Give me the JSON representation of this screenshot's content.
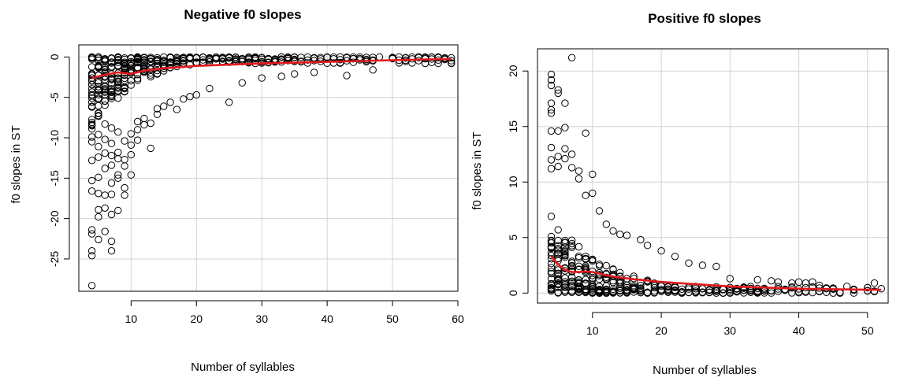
{
  "chart_data": [
    {
      "type": "scatter",
      "title": "Negative f0 slopes",
      "xlabel": "Number of syllables",
      "ylabel": "f0 slopes in ST",
      "xlim": [
        2,
        60
      ],
      "ylim": [
        -29,
        1.5
      ],
      "xticks": [
        10,
        20,
        30,
        40,
        50,
        60
      ],
      "yticks": [
        0,
        -5,
        -10,
        -15,
        -20,
        -25
      ],
      "grid": true,
      "point_color": "#000000",
      "fit_color": "#e41a1c",
      "x_min_data": 4,
      "x_max_data": 59,
      "sample_points": [
        [
          4,
          -28.3
        ],
        [
          4,
          -24.6
        ],
        [
          4,
          -24.0
        ],
        [
          4,
          -21.9
        ],
        [
          4,
          -21.4
        ],
        [
          4,
          -16.6
        ],
        [
          4,
          -15.3
        ],
        [
          4,
          -12.8
        ],
        [
          4,
          -10.5
        ],
        [
          4,
          -9.9
        ],
        [
          4,
          -8.1
        ],
        [
          4,
          -6.2
        ],
        [
          4,
          -4.8
        ],
        [
          5,
          -22.6
        ],
        [
          5,
          -19.8
        ],
        [
          5,
          -18.9
        ],
        [
          5,
          -16.9
        ],
        [
          5,
          -14.9
        ],
        [
          5,
          -12.4
        ],
        [
          5,
          -11.1
        ],
        [
          5,
          -9.6
        ],
        [
          5,
          -7.0
        ],
        [
          6,
          -21.6
        ],
        [
          6,
          -18.7
        ],
        [
          6,
          -17.1
        ],
        [
          6,
          -13.8
        ],
        [
          6,
          -11.9
        ],
        [
          6,
          -10.2
        ],
        [
          6,
          -8.3
        ],
        [
          7,
          -24.0
        ],
        [
          7,
          -22.8
        ],
        [
          7,
          -19.5
        ],
        [
          7,
          -17.0
        ],
        [
          7,
          -15.6
        ],
        [
          7,
          -13.4
        ],
        [
          7,
          -12.2
        ],
        [
          7,
          -10.7
        ],
        [
          7,
          -8.8
        ],
        [
          8,
          -19.0
        ],
        [
          8,
          -15.0
        ],
        [
          8,
          -14.6
        ],
        [
          8,
          -12.6
        ],
        [
          8,
          -11.8
        ],
        [
          8,
          -9.3
        ],
        [
          9,
          -17.1
        ],
        [
          9,
          -16.2
        ],
        [
          9,
          -13.5
        ],
        [
          9,
          -12.7
        ],
        [
          9,
          -10.4
        ],
        [
          10,
          -14.6
        ],
        [
          10,
          -12.1
        ],
        [
          10,
          -10.9
        ],
        [
          10,
          -9.5
        ],
        [
          11,
          -10.3
        ],
        [
          11,
          -9.0
        ],
        [
          11,
          -8.0
        ],
        [
          12,
          -8.4
        ],
        [
          12,
          -7.6
        ],
        [
          13,
          -11.3
        ],
        [
          13,
          -8.2
        ],
        [
          14,
          -6.4
        ],
        [
          14,
          -7.1
        ],
        [
          15,
          -6.1
        ],
        [
          16,
          -5.6
        ],
        [
          17,
          -6.5
        ],
        [
          18,
          -5.2
        ],
        [
          19,
          -4.9
        ],
        [
          20,
          -4.7
        ],
        [
          22,
          -3.9
        ],
        [
          25,
          -5.6
        ],
        [
          27,
          -3.2
        ],
        [
          30,
          -2.6
        ],
        [
          33,
          -2.4
        ],
        [
          35,
          -2.1
        ],
        [
          38,
          -1.9
        ],
        [
          43,
          -2.3
        ],
        [
          47,
          -1.6
        ],
        [
          57,
          -0.8
        ],
        [
          59,
          -0.8
        ],
        [
          42,
          0
        ],
        [
          44,
          -0.2
        ],
        [
          46,
          -0.3
        ],
        [
          48,
          0
        ],
        [
          50,
          -0.2
        ],
        [
          52,
          -0.4
        ],
        [
          54,
          0
        ],
        [
          55,
          0
        ],
        [
          56,
          0
        ],
        [
          57,
          0
        ]
      ],
      "fit_line": [
        [
          4,
          -2.6
        ],
        [
          6,
          -2.2
        ],
        [
          8,
          -1.9
        ],
        [
          10,
          -2.1
        ],
        [
          12,
          -1.7
        ],
        [
          15,
          -1.4
        ],
        [
          20,
          -1.1
        ],
        [
          25,
          -0.95
        ],
        [
          30,
          -0.8
        ],
        [
          35,
          -0.7
        ],
        [
          40,
          -0.6
        ],
        [
          45,
          -0.5
        ],
        [
          50,
          -0.4
        ],
        [
          55,
          -0.3
        ],
        [
          59,
          -0.25
        ]
      ]
    },
    {
      "type": "scatter",
      "title": "Positive f0 slopes",
      "xlabel": "Number of syllables",
      "ylabel": "f0 slopes in ST",
      "xlim": [
        2,
        53
      ],
      "ylim": [
        -0.9,
        22
      ],
      "xticks": [
        10,
        20,
        30,
        40,
        50
      ],
      "yticks": [
        0,
        5,
        10,
        15,
        20
      ],
      "grid": true,
      "point_color": "#000000",
      "fit_color": "#e41a1c",
      "x_min_data": 4,
      "x_max_data": 52,
      "sample_points": [
        [
          4,
          19.7
        ],
        [
          4,
          19.2
        ],
        [
          4,
          18.7
        ],
        [
          4,
          17.1
        ],
        [
          4,
          16.5
        ],
        [
          4,
          16.2
        ],
        [
          4,
          14.6
        ],
        [
          4,
          13.1
        ],
        [
          4,
          12.0
        ],
        [
          4,
          11.2
        ],
        [
          5,
          18.3
        ],
        [
          5,
          18.0
        ],
        [
          5,
          14.6
        ],
        [
          5,
          12.3
        ],
        [
          5,
          11.4
        ],
        [
          6,
          17.1
        ],
        [
          6,
          14.9
        ],
        [
          6,
          13.0
        ],
        [
          6,
          12.1
        ],
        [
          7,
          21.2
        ],
        [
          7,
          12.5
        ],
        [
          7,
          11.3
        ],
        [
          8,
          11.0
        ],
        [
          8,
          10.3
        ],
        [
          9,
          14.4
        ],
        [
          9,
          8.8
        ],
        [
          10,
          10.7
        ],
        [
          10,
          9.0
        ],
        [
          11,
          7.4
        ],
        [
          12,
          6.2
        ],
        [
          13,
          5.6
        ],
        [
          14,
          5.3
        ],
        [
          15,
          5.2
        ],
        [
          17,
          4.8
        ],
        [
          18,
          4.3
        ],
        [
          20,
          3.8
        ],
        [
          22,
          3.3
        ],
        [
          24,
          2.7
        ],
        [
          26,
          2.5
        ],
        [
          28,
          2.4
        ],
        [
          30,
          1.3
        ],
        [
          34,
          1.2
        ],
        [
          36,
          1.1
        ],
        [
          37,
          1.0
        ],
        [
          39,
          0.9
        ],
        [
          40,
          1.0
        ],
        [
          41,
          0.9
        ],
        [
          42,
          1.0
        ],
        [
          43,
          0.7
        ],
        [
          44,
          0.4
        ],
        [
          45,
          0.4
        ],
        [
          47,
          0.6
        ],
        [
          50,
          0.5
        ],
        [
          51,
          0.9
        ],
        [
          52,
          0.4
        ]
      ],
      "fit_line": [
        [
          4,
          3.3
        ],
        [
          5,
          2.6
        ],
        [
          6,
          2.1
        ],
        [
          7,
          1.9
        ],
        [
          8,
          1.9
        ],
        [
          9,
          1.95
        ],
        [
          10,
          1.9
        ],
        [
          12,
          1.6
        ],
        [
          14,
          1.4
        ],
        [
          16,
          1.25
        ],
        [
          20,
          1.0
        ],
        [
          25,
          0.8
        ],
        [
          30,
          0.6
        ],
        [
          35,
          0.5
        ],
        [
          40,
          0.4
        ],
        [
          45,
          0.35
        ],
        [
          50,
          0.3
        ],
        [
          52,
          0.3
        ]
      ]
    }
  ]
}
